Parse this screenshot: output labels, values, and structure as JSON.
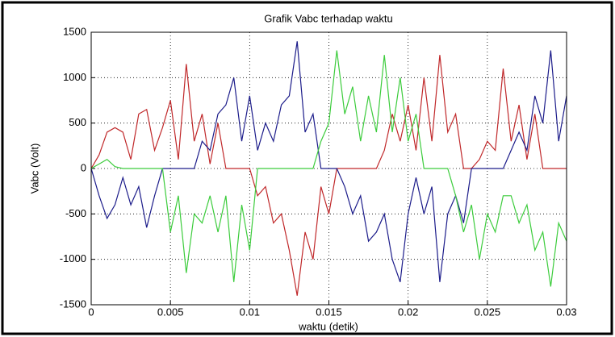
{
  "chart_data": {
    "type": "line",
    "title": "Grafik Vabc terhadap waktu",
    "xlabel": "waktu (detik)",
    "ylabel": "Vabc (Volt)",
    "x": [
      0,
      0.0005,
      0.001,
      0.0015,
      0.002,
      0.0025,
      0.003,
      0.0035,
      0.004,
      0.0045,
      0.005,
      0.0055,
      0.006,
      0.0065,
      0.007,
      0.0075,
      0.008,
      0.0085,
      0.009,
      0.0095,
      0.01,
      0.0105,
      0.011,
      0.0115,
      0.012,
      0.0125,
      0.013,
      0.0135,
      0.014,
      0.0145,
      0.015,
      0.0155,
      0.016,
      0.0165,
      0.017,
      0.0175,
      0.018,
      0.0185,
      0.019,
      0.0195,
      0.02,
      0.0205,
      0.021,
      0.0215,
      0.022,
      0.0225,
      0.023,
      0.0235,
      0.024,
      0.0245,
      0.025,
      0.0255,
      0.026,
      0.0265,
      0.027,
      0.0275,
      0.028,
      0.0285,
      0.029,
      0.0295,
      0.03
    ],
    "series": [
      {
        "color": "#c0282a",
        "values": [
          0,
          150,
          400,
          450,
          400,
          100,
          600,
          650,
          200,
          450,
          750,
          100,
          1150,
          300,
          600,
          50,
          500,
          0,
          0,
          0,
          0,
          -300,
          -200,
          -600,
          -500,
          -900,
          -1400,
          -700,
          -1000,
          -200,
          -500,
          0,
          0,
          0,
          0,
          0,
          0,
          200,
          600,
          300,
          700,
          200,
          1000,
          300,
          1250,
          400,
          600,
          0,
          0,
          100,
          300,
          200,
          1100,
          300,
          700,
          100,
          600,
          0,
          0,
          0,
          0
        ]
      },
      {
        "color": "#1c1c8a",
        "values": [
          0,
          -300,
          -550,
          -400,
          -100,
          -400,
          -200,
          -650,
          -300,
          0,
          0,
          0,
          0,
          0,
          300,
          200,
          600,
          700,
          1000,
          300,
          800,
          200,
          500,
          300,
          700,
          800,
          1400,
          400,
          600,
          0,
          0,
          0,
          -200,
          -500,
          -300,
          -800,
          -700,
          -500,
          -1000,
          -1250,
          -500,
          -100,
          -500,
          -200,
          -1250,
          -500,
          -300,
          -600,
          0,
          0,
          0,
          0,
          0,
          200,
          400,
          200,
          800,
          500,
          1300,
          300,
          800
        ]
      },
      {
        "color": "#3ccc3c",
        "values": [
          0,
          50,
          100,
          20,
          0,
          0,
          0,
          0,
          0,
          0,
          -700,
          -300,
          -1150,
          -500,
          -600,
          -300,
          -700,
          -300,
          -1250,
          -400,
          -900,
          0,
          0,
          0,
          0,
          0,
          0,
          0,
          0,
          300,
          500,
          1300,
          600,
          900,
          300,
          800,
          400,
          1250,
          400,
          1000,
          300,
          600,
          0,
          0,
          0,
          0,
          -300,
          -700,
          -400,
          -1000,
          -500,
          -700,
          -300,
          -300,
          -600,
          -400,
          -900,
          -700,
          -1300,
          -600,
          -800
        ]
      }
    ],
    "xlim": [
      0,
      0.03
    ],
    "xticks": [
      0,
      0.005,
      0.01,
      0.015,
      0.02,
      0.025,
      0.03
    ],
    "ylim": [
      -1500,
      1500
    ],
    "yticks": [
      -1500,
      -1000,
      -500,
      0,
      500,
      1000,
      1500
    ],
    "grid": true
  }
}
